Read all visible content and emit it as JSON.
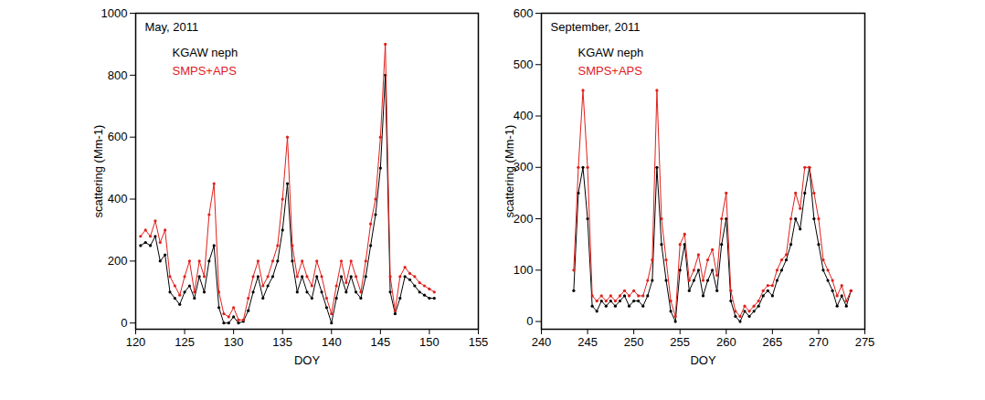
{
  "chart_data": [
    {
      "type": "line",
      "marker": "dot",
      "title": "May, 2011",
      "x_label": "DOY",
      "y_label": "scattering (Mm-1)",
      "legend": "top-left",
      "xlim": [
        120,
        155
      ],
      "xticks": [
        120,
        125,
        130,
        135,
        140,
        145,
        150,
        155
      ],
      "ylim": [
        -20,
        1000
      ],
      "yticks": [
        0,
        200,
        400,
        600,
        800,
        1000
      ],
      "x": [
        120.5,
        121,
        121.5,
        122,
        122.5,
        123,
        123.5,
        124,
        124.5,
        125,
        125.5,
        126,
        126.5,
        127,
        127.5,
        128,
        128.5,
        129,
        129.5,
        130,
        130.5,
        131,
        131.5,
        132,
        132.5,
        133,
        133.5,
        134,
        134.5,
        135,
        135.5,
        136,
        136.5,
        137,
        137.5,
        138,
        138.5,
        139,
        139.5,
        140,
        140.5,
        141,
        141.5,
        142,
        142.5,
        143,
        143.5,
        144,
        144.5,
        145,
        145.5,
        146,
        146.5,
        147,
        147.5,
        148,
        148.5,
        149,
        149.5,
        150,
        150.5
      ],
      "series": [
        {
          "name": "KGAW neph",
          "color": "#000000",
          "values": [
            250,
            260,
            250,
            280,
            200,
            220,
            100,
            80,
            60,
            100,
            120,
            80,
            150,
            100,
            200,
            250,
            50,
            0,
            0,
            20,
            0,
            5,
            40,
            100,
            150,
            80,
            120,
            150,
            200,
            300,
            450,
            200,
            100,
            150,
            100,
            80,
            150,
            100,
            50,
            0,
            80,
            150,
            100,
            150,
            100,
            80,
            150,
            250,
            350,
            500,
            800,
            100,
            30,
            80,
            150,
            140,
            120,
            100,
            90,
            80,
            80
          ]
        },
        {
          "name": "SMPS+APS",
          "color": "#e0201b",
          "values": [
            280,
            300,
            280,
            330,
            260,
            300,
            150,
            120,
            90,
            150,
            200,
            100,
            200,
            150,
            350,
            450,
            100,
            30,
            20,
            50,
            10,
            10,
            80,
            150,
            200,
            120,
            150,
            200,
            250,
            400,
            600,
            250,
            150,
            200,
            150,
            120,
            200,
            150,
            80,
            30,
            120,
            200,
            130,
            200,
            150,
            100,
            200,
            320,
            400,
            600,
            900,
            150,
            40,
            150,
            180,
            160,
            150,
            130,
            120,
            110,
            100
          ]
        }
      ]
    },
    {
      "type": "line",
      "marker": "dot",
      "title": "September, 2011",
      "x_label": "DOY",
      "y_label": "scattering (Mm-1)",
      "legend": "top-left",
      "xlim": [
        240,
        275
      ],
      "xticks": [
        240,
        245,
        250,
        255,
        260,
        265,
        270,
        275
      ],
      "ylim": [
        -15,
        600
      ],
      "yticks": [
        0,
        100,
        200,
        300,
        400,
        500,
        600
      ],
      "x": [
        243.5,
        244,
        244.5,
        245,
        245.5,
        246,
        246.5,
        247,
        247.5,
        248,
        248.5,
        249,
        249.5,
        250,
        250.5,
        251,
        251.5,
        252,
        252.5,
        253,
        253.5,
        254,
        254.5,
        255,
        255.5,
        256,
        256.5,
        257,
        257.5,
        258,
        258.5,
        259,
        259.5,
        260,
        260.5,
        261,
        261.5,
        262,
        262.5,
        263,
        263.5,
        264,
        264.5,
        265,
        265.5,
        266,
        266.5,
        267,
        267.5,
        268,
        268.5,
        269,
        269.5,
        270,
        270.5,
        271,
        271.5,
        272,
        272.5,
        273,
        273.5
      ],
      "series": [
        {
          "name": "KGAW neph",
          "color": "#000000",
          "values": [
            60,
            250,
            300,
            200,
            30,
            20,
            40,
            30,
            40,
            30,
            40,
            50,
            30,
            40,
            40,
            30,
            50,
            80,
            300,
            150,
            80,
            20,
            0,
            100,
            150,
            60,
            80,
            100,
            50,
            80,
            100,
            60,
            150,
            200,
            40,
            10,
            0,
            20,
            10,
            20,
            30,
            50,
            60,
            50,
            80,
            100,
            120,
            150,
            200,
            180,
            250,
            300,
            200,
            150,
            100,
            80,
            60,
            30,
            50,
            30,
            60
          ]
        },
        {
          "name": "SMPS+APS",
          "color": "#e0201b",
          "values": [
            100,
            300,
            450,
            300,
            50,
            40,
            50,
            40,
            50,
            40,
            50,
            60,
            50,
            60,
            50,
            50,
            80,
            120,
            450,
            200,
            120,
            40,
            10,
            150,
            170,
            80,
            100,
            130,
            80,
            120,
            140,
            90,
            200,
            250,
            60,
            20,
            10,
            30,
            20,
            30,
            40,
            60,
            70,
            70,
            100,
            120,
            130,
            200,
            250,
            220,
            300,
            300,
            250,
            200,
            120,
            100,
            80,
            50,
            70,
            40,
            60
          ]
        }
      ]
    }
  ]
}
